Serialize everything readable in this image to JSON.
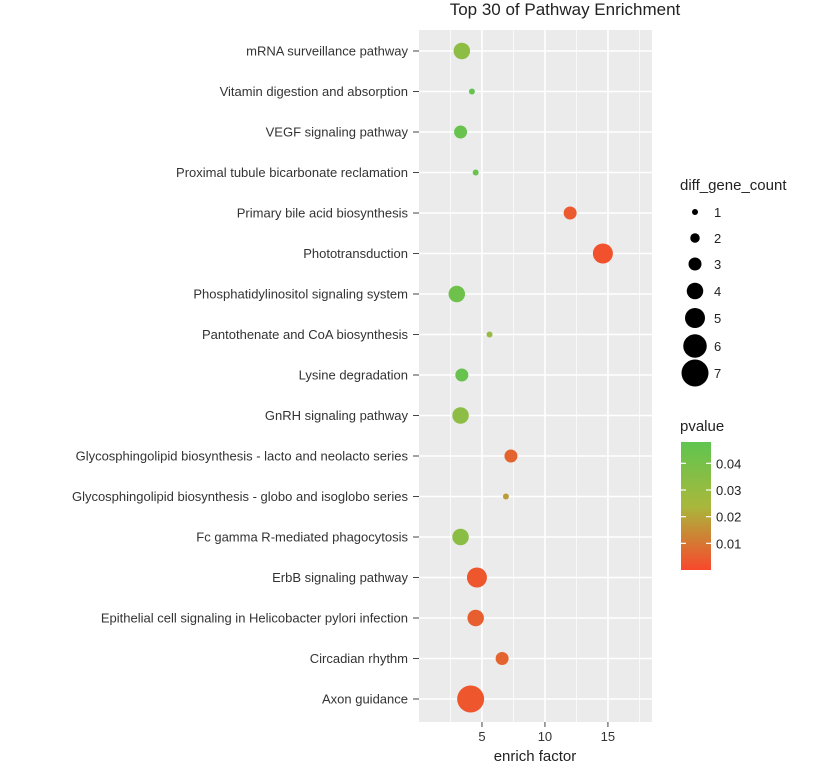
{
  "chart_data": {
    "type": "scatter",
    "title": "Top 30 of Pathway Enrichment",
    "xlabel": "enrich factor",
    "ylabel": "",
    "xlim": [
      0,
      18.5
    ],
    "xticks": [
      "5",
      "10",
      "15"
    ],
    "grid": true,
    "legend_position": "right",
    "categories": [
      "mRNA surveillance pathway",
      "Vitamin digestion and absorption",
      "VEGF signaling pathway",
      "Proximal tubule bicarbonate reclamation",
      "Primary bile acid biosynthesis",
      "Phototransduction",
      "Phosphatidylinositol signaling system",
      "Pantothenate and CoA biosynthesis",
      "Lysine degradation",
      "GnRH signaling pathway",
      "Glycosphingolipid biosynthesis - lacto and neolacto series",
      "Glycosphingolipid biosynthesis - globo and isoglobo series",
      "Fc gamma R-mediated phagocytosis",
      "ErbB signaling pathway",
      "Epithelial cell signaling in Helicobacter pylori infection",
      "Circadian rhythm",
      "Axon guidance"
    ],
    "points": [
      {
        "x": 3.4,
        "size": 4,
        "pvalue": 0.033
      },
      {
        "x": 4.2,
        "size": 1,
        "pvalue": 0.046
      },
      {
        "x": 3.3,
        "size": 3,
        "pvalue": 0.045
      },
      {
        "x": 4.5,
        "size": 1,
        "pvalue": 0.045
      },
      {
        "x": 12.0,
        "size": 3,
        "pvalue": 0.004
      },
      {
        "x": 14.6,
        "size": 5,
        "pvalue": 0.002
      },
      {
        "x": 3.0,
        "size": 4,
        "pvalue": 0.043
      },
      {
        "x": 5.6,
        "size": 1,
        "pvalue": 0.03
      },
      {
        "x": 3.4,
        "size": 3,
        "pvalue": 0.045
      },
      {
        "x": 3.3,
        "size": 4,
        "pvalue": 0.033
      },
      {
        "x": 7.3,
        "size": 3,
        "pvalue": 0.006
      },
      {
        "x": 6.9,
        "size": 1,
        "pvalue": 0.018
      },
      {
        "x": 3.3,
        "size": 4,
        "pvalue": 0.034
      },
      {
        "x": 4.6,
        "size": 5,
        "pvalue": 0.003
      },
      {
        "x": 4.5,
        "size": 4,
        "pvalue": 0.005
      },
      {
        "x": 6.6,
        "size": 3,
        "pvalue": 0.006
      },
      {
        "x": 4.1,
        "size": 7,
        "pvalue": 0.003
      }
    ],
    "size_legend": {
      "title": "diff_gene_count",
      "labels": [
        "1",
        "2",
        "3",
        "4",
        "5",
        "6",
        "7"
      ],
      "values": [
        1,
        2,
        3,
        4,
        5,
        6,
        7
      ]
    },
    "color_legend": {
      "title": "pvalue",
      "labels": [
        "0.04",
        "0.03",
        "0.02",
        "0.01"
      ],
      "values": [
        0.04,
        0.03,
        0.02,
        0.01
      ],
      "range": [
        0.0,
        0.048
      ],
      "low_color": "#f8482c",
      "mid_color": "#a8b83c",
      "high_color": "#5fc550"
    },
    "panel_color": "#ebebeb",
    "grid_color": "#ffffff"
  }
}
